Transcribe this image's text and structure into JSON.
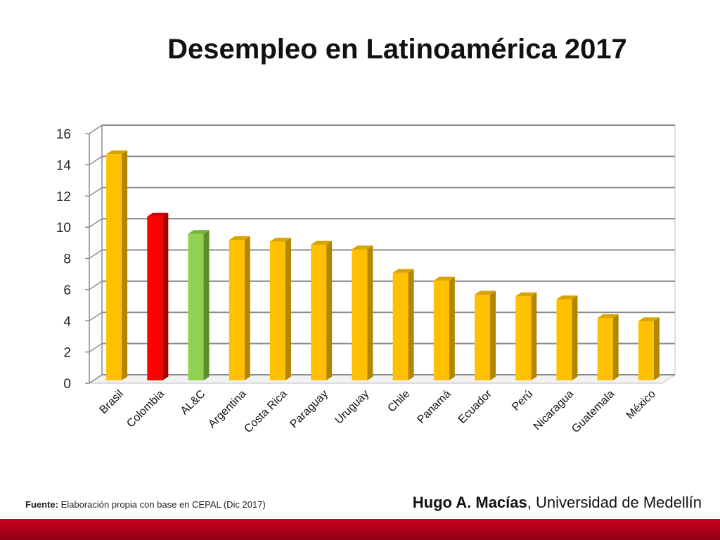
{
  "page": {
    "title": "Desempleo en Latinoamérica 2017",
    "source_label": "Fuente:",
    "source_text": " Elaboración propia con base en CEPAL (Dic 2017)",
    "author_name": "Hugo A. Macías",
    "author_affiliation": ", Universidad de Medellín"
  },
  "chart_data": {
    "type": "bar",
    "title": "Desempleo en Latinoamérica 2017",
    "xlabel": "",
    "ylabel": "",
    "ylim": [
      0,
      16
    ],
    "yticks": [
      0,
      2,
      4,
      6,
      8,
      10,
      12,
      14,
      16
    ],
    "grid": true,
    "categories": [
      "Brasil",
      "Colombia",
      "AL&C",
      "Argentina",
      "Costa Rica",
      "Paraguay",
      "Uruguay",
      "Chile",
      "Panamá",
      "Ecuador",
      "Perú",
      "Nicaragua",
      "Guatemala",
      "México"
    ],
    "values": [
      14.5,
      10.5,
      9.4,
      9.0,
      8.9,
      8.7,
      8.4,
      6.9,
      6.4,
      5.5,
      5.4,
      5.2,
      4.0,
      3.8
    ],
    "colors": [
      "#ffc000",
      "#ff0000",
      "#92d050",
      "#ffc000",
      "#ffc000",
      "#ffc000",
      "#ffc000",
      "#ffc000",
      "#ffc000",
      "#ffc000",
      "#ffc000",
      "#ffc000",
      "#ffc000",
      "#ffc000"
    ],
    "side_colors": [
      "#b38600",
      "#a50000",
      "#5e8f2a",
      "#b38600",
      "#b38600",
      "#b38600",
      "#b38600",
      "#b38600",
      "#b38600",
      "#b38600",
      "#b38600",
      "#b38600",
      "#b38600",
      "#b38600"
    ],
    "top_colors": [
      "#d9a300",
      "#d40000",
      "#7ab43e",
      "#d9a300",
      "#d9a300",
      "#d9a300",
      "#d9a300",
      "#d9a300",
      "#d9a300",
      "#d9a300",
      "#d9a300",
      "#d9a300",
      "#d9a300",
      "#d9a300"
    ]
  }
}
